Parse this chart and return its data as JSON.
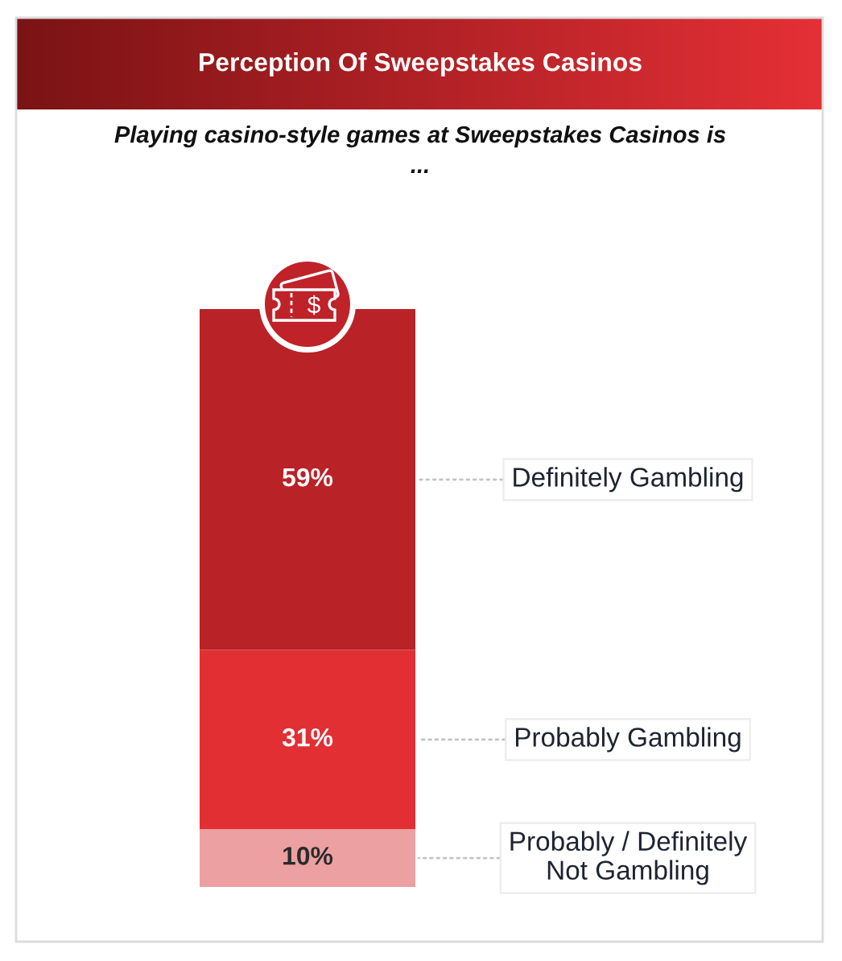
{
  "chart_data": {
    "type": "bar",
    "title": "Perception Of Sweepstakes Casinos",
    "subtitle": "Playing casino-style games at Sweepstakes Casinos is\n...",
    "categories": [
      null
    ],
    "stacked": true,
    "tick_labels": false,
    "series": [
      {
        "name": "Probably / Definitely\nNot Gambling",
        "color": "#eca0a2",
        "values": [
          10
        ],
        "value_labels": [
          "10%"
        ]
      },
      {
        "name": "Probably Gambling",
        "color": "#e12f34",
        "values": [
          31
        ],
        "value_labels": [
          "31%"
        ]
      },
      {
        "name": "Definitely Gambling",
        "color": "#b92227",
        "values": [
          59
        ],
        "value_labels": [
          "59%"
        ]
      }
    ]
  }
}
